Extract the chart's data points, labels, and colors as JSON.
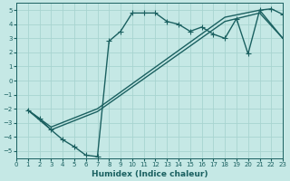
{
  "xlabel": "Humidex (Indice chaleur)",
  "xlim": [
    0,
    23
  ],
  "ylim": [
    -5.5,
    5.5
  ],
  "xticks": [
    0,
    1,
    2,
    3,
    4,
    5,
    6,
    7,
    8,
    9,
    10,
    11,
    12,
    13,
    14,
    15,
    16,
    17,
    18,
    19,
    20,
    21,
    22,
    23
  ],
  "yticks": [
    -5,
    -4,
    -3,
    -2,
    -1,
    0,
    1,
    2,
    3,
    4,
    5
  ],
  "bg_color": "#c5e8e5",
  "grid_color": "#a8d4d0",
  "line_color": "#1a6060",
  "line_width": 1.0,
  "marker": "+",
  "marker_size": 4,
  "lines": [
    {
      "x": [
        1,
        2,
        3,
        4,
        5,
        6,
        7,
        8,
        9,
        10,
        11,
        12,
        13,
        14,
        15,
        16,
        17,
        18,
        19,
        20,
        21,
        22,
        23
      ],
      "y": [
        -2.1,
        -2.7,
        -3.5,
        -4.2,
        -4.7,
        -5.3,
        -5.4,
        2.8,
        3.5,
        4.8,
        4.8,
        4.8,
        4.2,
        4.0,
        3.5,
        3.8,
        3.3,
        3.0,
        4.4,
        1.9,
        5.0,
        5.1,
        4.7
      ],
      "marker": "+"
    },
    {
      "x": [
        1,
        3,
        7,
        18,
        21,
        23
      ],
      "y": [
        -2.1,
        -3.3,
        -2.0,
        4.5,
        5.0,
        3.0
      ],
      "marker": null
    },
    {
      "x": [
        1,
        3,
        7,
        18,
        21,
        23
      ],
      "y": [
        -2.1,
        -3.5,
        -2.2,
        4.2,
        4.8,
        3.0
      ],
      "marker": null
    }
  ]
}
